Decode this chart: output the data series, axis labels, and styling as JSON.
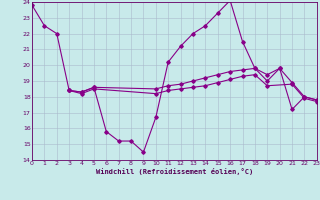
{
  "background_color": "#c8eaea",
  "grid_color": "#aabbcc",
  "line_color": "#880088",
  "xlabel": "Windchill (Refroidissement éolien,°C)",
  "xlim": [
    0,
    23
  ],
  "ylim": [
    14,
    24
  ],
  "yticks": [
    14,
    15,
    16,
    17,
    18,
    19,
    20,
    21,
    22,
    23,
    24
  ],
  "xticks": [
    0,
    1,
    2,
    3,
    4,
    5,
    6,
    7,
    8,
    9,
    10,
    11,
    12,
    13,
    14,
    15,
    16,
    17,
    18,
    19,
    20,
    21,
    22,
    23
  ],
  "s1_x": [
    0,
    1,
    2,
    3,
    4,
    5,
    6,
    7,
    8,
    9,
    10,
    11,
    12,
    13,
    14,
    15,
    16,
    17,
    18,
    19,
    20,
    21,
    22,
    23
  ],
  "s1_y": [
    23.8,
    22.5,
    22.0,
    18.4,
    18.3,
    18.6,
    15.8,
    15.2,
    15.2,
    14.5,
    16.7,
    20.2,
    21.2,
    22.0,
    22.5,
    23.3,
    24.1,
    21.5,
    19.8,
    19.4,
    19.8,
    17.2,
    18.0,
    17.8
  ],
  "s2_x": [
    3,
    4,
    5,
    10,
    11,
    12,
    13,
    14,
    15,
    16,
    17,
    18,
    19,
    20,
    21,
    22,
    23
  ],
  "s2_y": [
    18.4,
    18.3,
    18.6,
    18.5,
    18.7,
    18.8,
    19.0,
    19.2,
    19.4,
    19.6,
    19.7,
    19.8,
    19.0,
    19.8,
    18.9,
    18.0,
    17.8
  ],
  "s3_x": [
    3,
    4,
    5,
    10,
    11,
    12,
    13,
    14,
    15,
    16,
    17,
    18,
    19,
    21,
    22,
    23
  ],
  "s3_y": [
    18.4,
    18.2,
    18.5,
    18.2,
    18.4,
    18.5,
    18.6,
    18.7,
    18.9,
    19.1,
    19.3,
    19.4,
    18.7,
    18.8,
    17.9,
    17.7
  ]
}
